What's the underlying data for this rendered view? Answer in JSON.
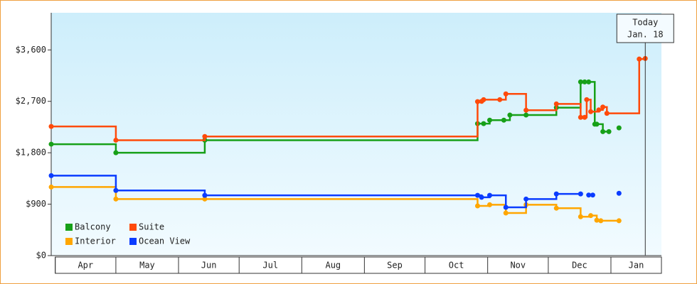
{
  "chart_data": {
    "type": "step-line",
    "ylim": [
      0,
      4250
    ],
    "yticks": [
      {
        "value": 0,
        "label": "$0"
      },
      {
        "value": 900,
        "label": "$900"
      },
      {
        "value": 1800,
        "label": "$1,800"
      },
      {
        "value": 2700,
        "label": "$2,700"
      },
      {
        "value": 3600,
        "label": "$3,600"
      }
    ],
    "xlim": [
      -2,
      300
    ],
    "xticks": [
      {
        "value": 0,
        "label": "Apr"
      },
      {
        "value": 30,
        "label": "May"
      },
      {
        "value": 61,
        "label": "Jun"
      },
      {
        "value": 91,
        "label": "Jul"
      },
      {
        "value": 122,
        "label": "Aug"
      },
      {
        "value": 153,
        "label": "Sep"
      },
      {
        "value": 183,
        "label": "Oct"
      },
      {
        "value": 214,
        "label": "Nov"
      },
      {
        "value": 244,
        "label": "Dec"
      },
      {
        "value": 275,
        "label": "Jan"
      }
    ],
    "today": {
      "x": 292,
      "label": [
        "Today",
        "Jan. 18"
      ]
    },
    "legend": "lower left",
    "series": [
      {
        "name": "Balcony",
        "color": "#17a018",
        "x": [
          -2,
          30,
          74,
          209,
          212,
          215,
          222,
          225,
          233,
          248,
          260,
          262,
          264,
          267,
          268,
          271,
          274,
          null,
          279
        ],
        "values": [
          1950,
          1800,
          2020,
          2310,
          2310,
          2370,
          2370,
          2460,
          2460,
          2590,
          3040,
          3040,
          3040,
          2300,
          2300,
          2170,
          2170,
          null,
          2235
        ]
      },
      {
        "name": "Suite",
        "color": "#ff4a0a",
        "x": [
          -2,
          30,
          74,
          209,
          211,
          212,
          220,
          223,
          233,
          248,
          260,
          262,
          263,
          265,
          269,
          271,
          273,
          289,
          292
        ],
        "values": [
          2260,
          2020,
          2085,
          2695,
          2700,
          2730,
          2730,
          2830,
          2545,
          2655,
          2420,
          2420,
          2730,
          2520,
          2550,
          2600,
          2490,
          3440,
          3450
        ]
      },
      {
        "name": "Interior",
        "color": "#ffa600",
        "x": [
          -2,
          30,
          74,
          209,
          215,
          223,
          233,
          248,
          260,
          265,
          268,
          270,
          279
        ],
        "values": [
          1200,
          990,
          990,
          870,
          890,
          745,
          890,
          830,
          680,
          700,
          620,
          610,
          610
        ]
      },
      {
        "name": "Ocean View",
        "color": "#0a3cff",
        "x": [
          -2,
          30,
          74,
          209,
          211,
          215,
          223,
          233,
          248,
          260,
          null,
          264,
          266,
          null,
          279
        ],
        "values": [
          1400,
          1140,
          1055,
          1055,
          1020,
          1055,
          845,
          990,
          1080,
          1080,
          null,
          1060,
          1060,
          null,
          1090
        ]
      }
    ]
  }
}
